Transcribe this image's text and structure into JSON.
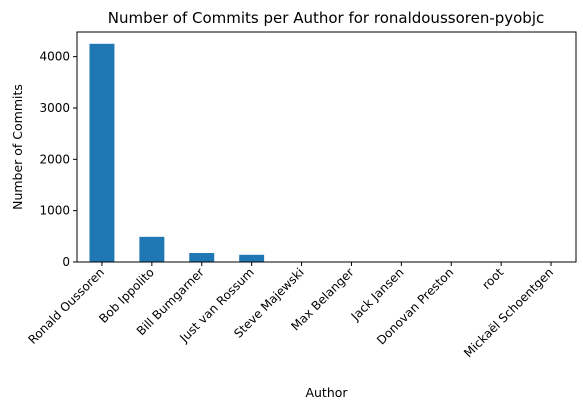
{
  "chart_data": {
    "type": "bar",
    "title": "Number of Commits per Author for ronaldoussoren-pyobjc",
    "xlabel": "Author",
    "ylabel": "Number of Commits",
    "categories": [
      "Ronald Oussoren",
      "Bob Ippolito",
      "Bill Bumgarner",
      "Just van Rossum",
      "Steve Majewski",
      "Max Belanger",
      "Jack Jansen",
      "Donovan Preston",
      "root",
      "Mickaël Schoentgen"
    ],
    "values": [
      4250,
      490,
      175,
      140,
      4,
      3,
      2,
      2,
      1,
      1
    ],
    "ylim": [
      0,
      4480
    ],
    "yticks": [
      0,
      1000,
      2000,
      3000,
      4000
    ],
    "grid": false,
    "legend": "none",
    "bar_color": "#1f77b4"
  }
}
